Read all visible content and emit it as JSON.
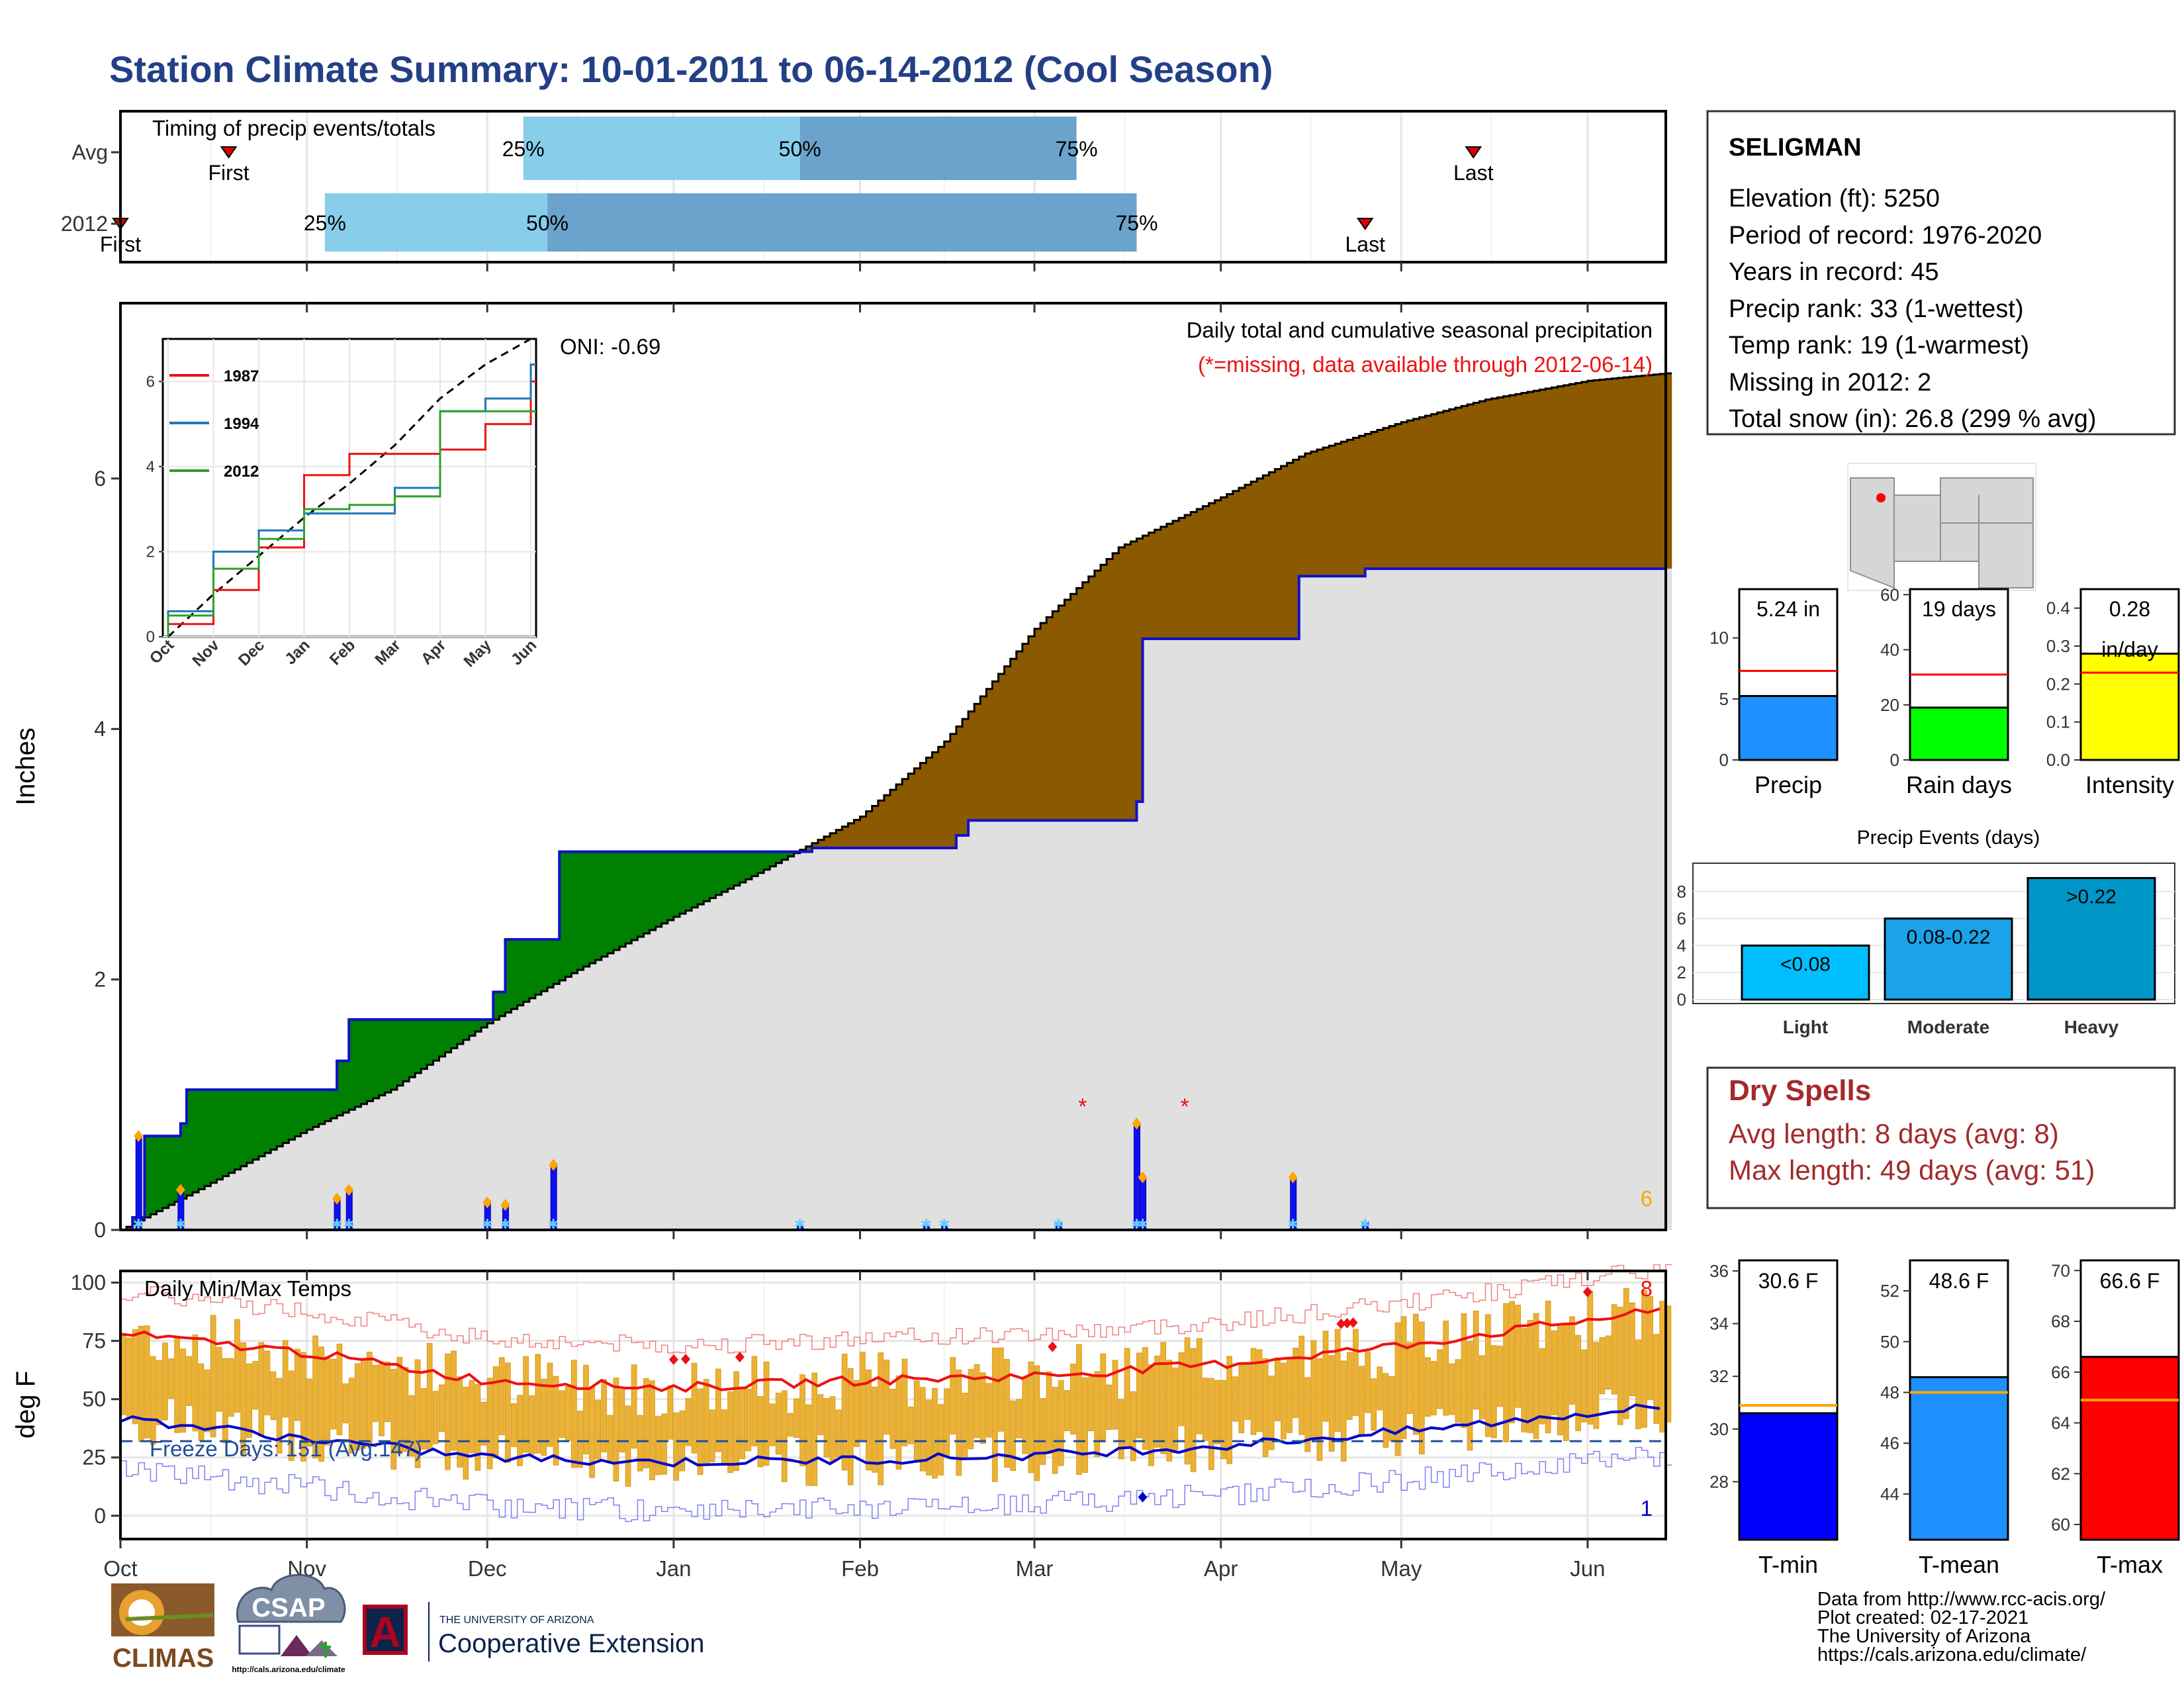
{
  "title": "Station Climate Summary: 10-01-2011 to 06-14-2012 (Cool Season)",
  "colors": {
    "title": "#233F86",
    "green": "#008000",
    "brown": "#8B5A00",
    "grey_fill": "#E0E0E0",
    "light_blue": "#87CEEB",
    "mid_blue": "#6BA3CC",
    "blue_line": "#1010CC",
    "orange": "#FFA500",
    "red": "#EE1111",
    "bar_gold": "#EBB233",
    "precip_bar": "#1E90FF",
    "rain_bar": "#00FF00",
    "intensity_bar": "#FFFF00",
    "events_light": "#00BFFF",
    "events_moderate": "#1AA3E8",
    "events_heavy": "#0096C8",
    "dry_red": "#A52A2A",
    "tmin": "#0000FF",
    "tmean": "#1E90FF",
    "tmax": "#FF0000"
  },
  "axis_months": [
    "Oct",
    "Nov",
    "Dec",
    "Jan",
    "Feb",
    "Mar",
    "Apr",
    "May",
    "Jun"
  ],
  "timing": {
    "title": "Timing of precip events/totals",
    "rows": [
      {
        "label": "Avg",
        "first": "First",
        "last": "Last",
        "p25": "25%",
        "p50": "50%",
        "p75": "75%",
        "first_date": "2011-10-19",
        "last_date": "2012-05-13",
        "q25_date": "2011-12-07",
        "q50_date": "2012-01-22",
        "q75_date": "2012-03-08"
      },
      {
        "label": "2012",
        "first": "First",
        "last": "Last",
        "p25": "25%",
        "p50": "50%",
        "p75": "75%",
        "first_date": "2011-10-01",
        "last_date": "2012-04-25",
        "q25_date": "2011-11-04",
        "q50_date": "2011-12-11",
        "q75_date": "2012-03-18"
      }
    ]
  },
  "main": {
    "ylabel": "Inches",
    "yticks": [
      "0",
      "2",
      "4",
      "6"
    ],
    "oni": "ONI: -0.69",
    "note1": "Daily total and cumulative seasonal precipitation",
    "note2": "(*=missing, data available through 2012-06-14)",
    "corner_count": "6"
  },
  "inset": {
    "months": [
      "Oct",
      "Nov",
      "Dec",
      "Jan",
      "Feb",
      "Mar",
      "Apr",
      "May",
      "Jun"
    ],
    "yticks": [
      "0",
      "2",
      "4",
      "6"
    ],
    "legend": [
      {
        "name": "1987",
        "color": "#EE1111"
      },
      {
        "name": "1994",
        "color": "#1F77B4"
      },
      {
        "name": "2012",
        "color": "#2CA02C"
      }
    ]
  },
  "temps": {
    "title": "Daily Min/Max Temps",
    "ylabel": "deg F",
    "yticks": [
      "0",
      "25",
      "50",
      "75",
      "100"
    ],
    "freeze": "Freeze Days: 151 (Avg:147)",
    "max_count": "8",
    "min_count": "1"
  },
  "info": {
    "station": "SELIGMAN",
    "lines": [
      "Elevation (ft): 5250",
      "Period of record: 1976-2020",
      "Years in record: 45",
      "Precip rank: 33 (1-wettest)",
      "Temp rank: 19 (1-warmest)",
      "Missing in 2012: 2",
      "Total snow (in): 26.8 (299 % avg)"
    ]
  },
  "mini_bars": [
    {
      "label": "Precip",
      "value_text": "5.24 in",
      "yticks": [
        "0",
        "5",
        "10"
      ]
    },
    {
      "label": "Rain days",
      "value_text": "19 days",
      "yticks": [
        "0",
        "20",
        "40",
        "60"
      ]
    },
    {
      "label": "Intensity",
      "value_text": "0.28",
      "value_text2": "in/day",
      "yticks": [
        "0.0",
        "0.1",
        "0.2",
        "0.3",
        "0.4"
      ]
    }
  ],
  "events": {
    "title": "Precip Events (days)",
    "yticks": [
      "0",
      "2",
      "4",
      "6",
      "8"
    ],
    "bars": [
      {
        "cat": "Light",
        "text": "<0.08"
      },
      {
        "cat": "Moderate",
        "text": "0.08-0.22"
      },
      {
        "cat": "Heavy",
        "text": ">0.22"
      }
    ]
  },
  "dry": {
    "title": "Dry Spells",
    "avg": "Avg length: 8 days (avg: 8)",
    "max": "Max length: 49 days (avg: 51)"
  },
  "temp_bars": [
    {
      "label": "T-min",
      "value_text": "30.6 F",
      "yticks": [
        "28",
        "30",
        "32",
        "34",
        "36"
      ]
    },
    {
      "label": "T-mean",
      "value_text": "48.6 F",
      "yticks": [
        "44",
        "46",
        "48",
        "50",
        "52"
      ]
    },
    {
      "label": "T-max",
      "value_text": "66.6 F",
      "yticks": [
        "60",
        "62",
        "64",
        "66",
        "68",
        "70"
      ]
    }
  ],
  "credits": [
    "Data from http://www.rcc-acis.org/",
    "Plot created: 02-17-2021",
    "The University of Arizona",
    "https://cals.arizona.edu/climate/"
  ],
  "logos": {
    "climas": "CLIMAS",
    "csap": "CSAP",
    "csap_url": "http://cals.arizona.edu/climate",
    "ua_letter": "A",
    "ua_small": "THE UNIVERSITY OF ARIZONA",
    "ua_big": "Cooperative Extension"
  },
  "chart_data": [
    {
      "type": "bar",
      "name": "timing",
      "categories": [
        "Avg",
        "2012"
      ],
      "x_axis": "date",
      "xlim": [
        "2011-10-01",
        "2012-06-14"
      ]
    },
    {
      "type": "area",
      "name": "cumulative_precip",
      "xlim": [
        "2011-10-01",
        "2012-06-14"
      ],
      "ylim": [
        0,
        7.4
      ],
      "ylabel": "Inches",
      "avg_cumulative": {
        "x": [
          "2011-10-01",
          "2011-10-15",
          "2011-11-01",
          "2011-11-15",
          "2011-12-01",
          "2011-12-15",
          "2012-01-01",
          "2012-01-15",
          "2012-02-01",
          "2012-02-15",
          "2012-03-01",
          "2012-03-15",
          "2012-04-01",
          "2012-04-15",
          "2012-05-01",
          "2012-05-15",
          "2012-06-01",
          "2012-06-14"
        ],
        "y": [
          0,
          0.35,
          0.8,
          1.12,
          1.65,
          2.05,
          2.5,
          2.85,
          3.3,
          3.9,
          4.8,
          5.45,
          5.85,
          6.2,
          6.45,
          6.63,
          6.78,
          6.84
        ]
      },
      "obs_cumulative": {
        "x": [
          "2011-10-01",
          "2011-10-03",
          "2011-10-05",
          "2011-10-07",
          "2011-10-11",
          "2011-10-12",
          "2011-11-01",
          "2011-11-06",
          "2011-11-08",
          "2011-12-01",
          "2011-12-02",
          "2011-12-04",
          "2011-12-12",
          "2011-12-13",
          "2012-01-24",
          "2012-02-17",
          "2012-02-19",
          "2012-03-17",
          "2012-03-18",
          "2012-03-19",
          "2012-04-13",
          "2012-04-14",
          "2012-04-25",
          "2012-06-14"
        ],
        "y": [
          0.0,
          0.1,
          0.75,
          0.75,
          0.85,
          1.12,
          1.12,
          1.35,
          1.68,
          1.68,
          1.9,
          2.32,
          2.32,
          3.02,
          3.05,
          3.15,
          3.27,
          3.27,
          3.42,
          4.72,
          4.72,
          5.22,
          5.28,
          5.28
        ]
      },
      "daily": [
        {
          "date": "2011-10-04",
          "in": 0.75
        },
        {
          "date": "2011-10-11",
          "in": 0.32
        },
        {
          "date": "2011-11-06",
          "in": 0.25
        },
        {
          "date": "2011-11-08",
          "in": 0.32
        },
        {
          "date": "2011-12-01",
          "in": 0.22
        },
        {
          "date": "2011-12-04",
          "in": 0.2
        },
        {
          "date": "2011-12-12",
          "in": 0.52
        },
        {
          "date": "2012-01-22",
          "in": 0.03
        },
        {
          "date": "2012-02-12",
          "in": 0.03
        },
        {
          "date": "2012-02-15",
          "in": 0.03
        },
        {
          "date": "2012-03-05",
          "in": 0.05
        },
        {
          "date": "2012-03-18",
          "in": 0.85
        },
        {
          "date": "2012-03-19",
          "in": 0.42
        },
        {
          "date": "2012-04-13",
          "in": 0.42
        },
        {
          "date": "2012-04-25",
          "in": 0.06
        }
      ],
      "missing_dates": [
        "2012-03-09",
        "2012-03-26"
      ]
    },
    {
      "type": "line",
      "name": "inset_cumulative_comparison",
      "x": [
        "Oct",
        "Nov",
        "Dec",
        "Jan",
        "Feb",
        "Mar",
        "Apr",
        "May",
        "Jun"
      ],
      "series": [
        {
          "name": "1987",
          "values": [
            0.3,
            1.1,
            2.1,
            3.8,
            4.3,
            4.3,
            4.4,
            5.0,
            6.0
          ]
        },
        {
          "name": "1994",
          "values": [
            0.6,
            2.0,
            2.5,
            2.9,
            2.9,
            3.5,
            5.3,
            5.6,
            6.4
          ]
        },
        {
          "name": "2012",
          "values": [
            0.5,
            1.6,
            2.3,
            3.0,
            3.1,
            3.3,
            5.3,
            5.3,
            5.3
          ]
        }
      ],
      "ylim": [
        0,
        7
      ]
    },
    {
      "type": "line",
      "name": "daily_temps",
      "ylim": [
        -10,
        105
      ],
      "ylabel": "deg F",
      "avg_max": {
        "x": [
          "Oct",
          "Nov",
          "Dec",
          "Jan",
          "Feb",
          "Mar",
          "Apr",
          "May",
          "Jun",
          "Jun-14"
        ],
        "y": [
          78,
          70,
          58,
          55,
          58,
          60,
          65,
          73,
          84,
          88
        ]
      },
      "avg_min": {
        "x": [
          "Oct",
          "Nov",
          "Dec",
          "Jan",
          "Feb",
          "Mar",
          "Apr",
          "May",
          "Jun",
          "Jun-14"
        ],
        "y": [
          42,
          33,
          25,
          23,
          24,
          26,
          30,
          36,
          44,
          47
        ]
      },
      "freeze_line": 32,
      "record_max_count": 8,
      "record_min_count": 1
    },
    {
      "type": "bar",
      "name": "season_totals",
      "categories": [
        "Precip",
        "Rain days",
        "Intensity"
      ],
      "values": [
        5.24,
        19,
        0.28
      ],
      "averages": [
        7.3,
        31,
        0.23
      ],
      "ylims": [
        [
          0,
          14
        ],
        [
          0,
          62
        ],
        [
          0,
          0.45
        ]
      ]
    },
    {
      "type": "bar",
      "name": "precip_events",
      "categories": [
        "Light",
        "Moderate",
        "Heavy"
      ],
      "values": [
        4,
        6,
        9
      ],
      "ylim": [
        0,
        10
      ]
    },
    {
      "type": "bar",
      "name": "season_temps",
      "categories": [
        "T-min",
        "T-mean",
        "T-max"
      ],
      "values": [
        30.6,
        48.6,
        66.6
      ],
      "averages": [
        30.9,
        48.0,
        64.9
      ],
      "ylims": [
        [
          25.8,
          36.4
        ],
        [
          42.2,
          53.2
        ],
        [
          59.4,
          70.4
        ]
      ]
    }
  ]
}
